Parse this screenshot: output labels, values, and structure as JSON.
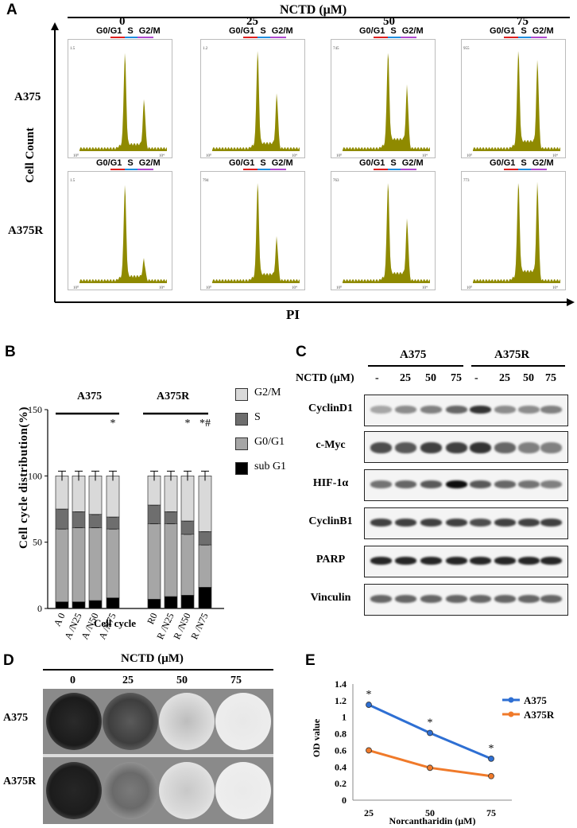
{
  "panelA": {
    "label": "A",
    "header": "NCTD (μM)",
    "concentrations": [
      "0",
      "25",
      "50",
      "75"
    ],
    "phase_labels": [
      "G0/G1",
      "S",
      "G2/M"
    ],
    "rows": [
      "A375",
      "A375R"
    ],
    "ylabel": "Cell Count",
    "xlabel": "PI",
    "hist_color": "#8f8a00",
    "hist_color_hex_label": "olive",
    "ymax_top": [
      "1.5",
      "1.2",
      "745",
      "955"
    ],
    "ymax_bottom": [
      "1.5",
      "794",
      "763",
      "773"
    ],
    "xtick_lo": "10⁰",
    "xtick_hi": "10⁴"
  },
  "panelB": {
    "label": "B",
    "ylabel": "Cell cycle distribution(%)",
    "xlabel": "Cell cycle",
    "group_labels": [
      "A375",
      "A375R"
    ],
    "legend": [
      "G2/M",
      "S",
      "G0/G1",
      "sub G1"
    ],
    "colors": {
      "G2/M": "#d9d9d9",
      "S": "#6e6e6e",
      "G0/G1": "#a6a6a6",
      "sub G1": "#000000"
    },
    "star_labels": [
      "*",
      "*",
      "*#"
    ],
    "yticks": [
      "0",
      "50",
      "100",
      "150"
    ]
  },
  "panelC": {
    "label": "C",
    "groups": [
      "A375",
      "A375R"
    ],
    "treat_label": "NCTD (μM)",
    "lanes": [
      "-",
      "25",
      "50",
      "75",
      "-",
      "25",
      "50",
      "75"
    ],
    "proteins": [
      "CyclinD1",
      "c-Myc",
      "HIF-1α",
      "CyclinB1",
      "PARP",
      "Vinculin"
    ]
  },
  "panelD": {
    "label": "D",
    "header": "NCTD (μM)",
    "concentrations": [
      "0",
      "25",
      "50",
      "75"
    ],
    "rows": [
      "A375",
      "A375R"
    ]
  },
  "panelE": {
    "label": "E"
  },
  "chart_data": [
    {
      "type": "line",
      "title": "",
      "xlabel": "Norcantharidin  (μM)",
      "ylabel": "OD value",
      "x": [
        25,
        50,
        75
      ],
      "ylim": [
        0,
        1.4
      ],
      "yticks": [
        "0",
        "0.2",
        "0.4",
        "0.6",
        "0.8",
        "1",
        "1.2",
        "1.4"
      ],
      "xticks": [
        "25",
        "50",
        "75"
      ],
      "series": [
        {
          "name": "A375",
          "values": [
            1.15,
            0.81,
            0.5
          ],
          "color": "#2e6fd3",
          "stars": [
            "*",
            "*",
            "*"
          ]
        },
        {
          "name": "A375R",
          "values": [
            0.6,
            0.39,
            0.29
          ],
          "color": "#f07a2a"
        }
      ],
      "legend_position": "right"
    },
    {
      "type": "bar",
      "title": "",
      "xlabel": "Cell cycle",
      "ylabel": "Cell cycle distribution(%)",
      "categories": [
        "A 0",
        "A /N25",
        "A /N50",
        "A /N75",
        "R0",
        "R /N25",
        "R /N50",
        "R /N75"
      ],
      "ylim": [
        0,
        150
      ],
      "stacked": true,
      "series": [
        {
          "name": "sub G1",
          "values": [
            5,
            5,
            6,
            8,
            7,
            9,
            10,
            16
          ]
        },
        {
          "name": "G0/G1",
          "values": [
            55,
            56,
            55,
            52,
            57,
            55,
            46,
            32
          ]
        },
        {
          "name": "S",
          "values": [
            15,
            12,
            10,
            9,
            14,
            9,
            10,
            10
          ]
        },
        {
          "name": "G2/M",
          "values": [
            25,
            27,
            29,
            31,
            22,
            27,
            34,
            42
          ]
        }
      ]
    }
  ]
}
